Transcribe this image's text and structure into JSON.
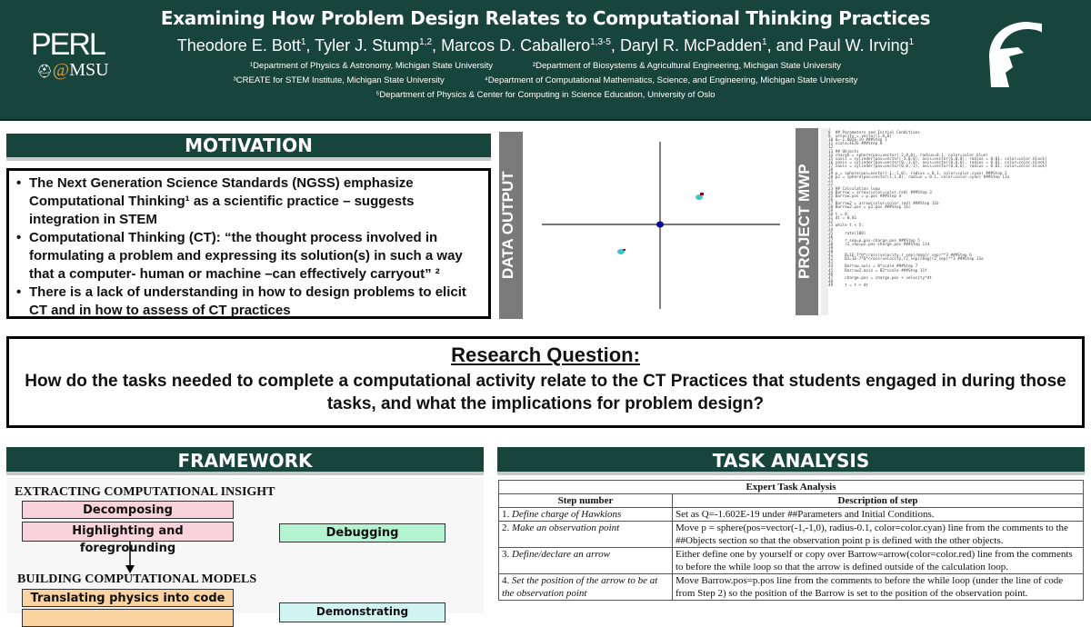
{
  "header": {
    "title": "Examining How Problem Design Relates to Computational Thinking Practices",
    "authors": [
      {
        "name": "Theodore E. Bott",
        "sup": "1"
      },
      {
        "name": "Tyler J. Stump",
        "sup": "1,2"
      },
      {
        "name": "Marcos D. Caballero",
        "sup": "1,3-5"
      },
      {
        "name": "Daryl R. McPadden",
        "sup": "1"
      },
      {
        "name": "and Paul W. Irving",
        "sup": "1"
      }
    ],
    "affiliations": [
      [
        "¹Department of Physics & Astronomy, Michigan State University",
        "²Department of Biosystems & Agricultural Engineering, Michigan State University"
      ],
      [
        "³CREATE for STEM Institute, Michigan State University",
        "⁴Department of Computational Mathematics, Science, and Engineering, Michigan State University"
      ],
      [
        "⁵Department of Physics & Center for Computing in Science Education, University of Oslo"
      ]
    ],
    "logo_perl": "PERL",
    "logo_at": "@",
    "logo_msu": "MSU"
  },
  "motivation": {
    "heading": "MOTIVATION",
    "bullets": [
      "The Next Generation Science Standards (NGSS) emphasize Computational Thinking¹ as a scientific practice – suggests integration in STEM",
      "Computational Thinking (CT): “the thought process involved in formulating a problem and expressing its solution(s) in such a way that a computer- human or machine –can effectively carryout” ²",
      "There is a lack of understanding in how to design problems to elicit CT and in how to assess of CT practices"
    ]
  },
  "data_output": {
    "label": "DATA OUTPUT"
  },
  "project_mwp": {
    "label": "PROJECT MWP",
    "code": [
      "7",
      "8  ## Parameters and Initial Conditions",
      "9  velocity = vector(1,0,0)",
      "10 Q=-1.602E-19 ###Step 1",
      "11 scale=1E26 ###Step 8",
      "12",
      "13 ## Objects",
      "14 charge = sphere(pos=vector(-2,0,0), radius=0.1, color=color.blue)",
      "15 xaxis = cylinder(pos=vector(-3,0,0), axis=vector(6,0,0), radius = 0.01, color=color.black)",
      "16 yaxis = cylinder(pos=vector(0,-3,0), axis=vector(0,6,0), radius = 0.01, color=color.black)",
      "17 zaxis = cylinder(pos=vector(0,0,-3), axis=vector(0,0,6), radius = 0.01, color=color.black)",
      "18",
      "19 p = sphere(pos=vector(-1,-1,0), radius = 0.1, color=color.cyan) ###Step 2",
      "20 p2 = sphere(pos=vector(1,1,0), radius = 0.1, color=color.cyan) ###Step 11a",
      "21",
      "22",
      "23 ## Calculation loop",
      "24 Barrow = arrow(color=color.red) ###Step 3",
      "25 Barrow.pos = p.pos ###Step 4",
      "26",
      "27 Barrow2 = arrow(color=color.red) ###Step 11b",
      "28 Barrow2.pos = p2.pos ###Step 11c",
      "29",
      "30 t = 0",
      "31 dt = 0.01",
      "32",
      "33 while t < 5:",
      "34",
      "35     rate(100)",
      "36",
      "37     r_sep=p.pos-charge.pos ###Step 5",
      "38     r2_sep=p2.pos-charge.pos ###Step 11d",
      "39",
      "40",
      "41     B=1E-7*Q*cross(velocity,r_sep)/mag(r_sep)**3 ###Step 6",
      "42     B2=1E-7*Q*cross(velocity,r2_sep)/mag(r2_sep)**3 ###Step 11e",
      "43",
      "44     Barrow.axis = B*scale ###Step 7",
      "45     Barrow2.axis = B2*scale ###Step 11f",
      "46",
      "47     charge.pos = charge.pos + velocity*dt",
      "48",
      "49     t = t + dt"
    ]
  },
  "research_question": {
    "title": "Research Question:",
    "text": "How do the tasks needed to complete a computational activity relate to the CT Practices that students engaged in during those tasks, and what the implications for problem design?"
  },
  "framework": {
    "heading": "FRAMEWORK",
    "group1": "EXTRACTING COMPUTATIONAL INSIGHT",
    "decomposing": "Decomposing",
    "highlighting": "Highlighting and foregrounding",
    "group2": "BUILDING COMPUTATIONAL MODELS",
    "translating": "Translating physics into code",
    "debugging": "Debugging",
    "dispositions": "Demonstrating constructive dispositions"
  },
  "task_analysis": {
    "heading": "TASK ANALYSIS",
    "table_title": "Expert Task Analysis",
    "columns": [
      "Step number",
      "Description of step"
    ],
    "rows": [
      {
        "num": "1.",
        "step": "Define charge of Hawkions",
        "desc": "Set as Q=-1.602E-19 under ##Parameters and Initial Conditions."
      },
      {
        "num": "2.",
        "step": "Make an observation point",
        "desc": "Move p = sphere(pos=vector(-1,-1,0), radius-0.1, color=color.cyan) line from the comments to the ##Objects section so that the observation point p is defined with the other objects."
      },
      {
        "num": "3.",
        "step": "Define/declare an arrow",
        "desc": "Either define one by yourself or copy over Barrow=arrow(color=color.red) line from the comments to before the while loop so that the arrow is defined outside of the calculation loop."
      },
      {
        "num": "4.",
        "step": "Set the position of the arrow to be at the observation point",
        "desc": "Move Barrow.pos=p.pos line from the comments to before the while loop (under the line of code from Step 2) so the position of the Barrow is set to the position of the observation point."
      }
    ]
  },
  "colors": {
    "msu_green": "#18453b",
    "gray_bar": "#7a7a7a"
  }
}
